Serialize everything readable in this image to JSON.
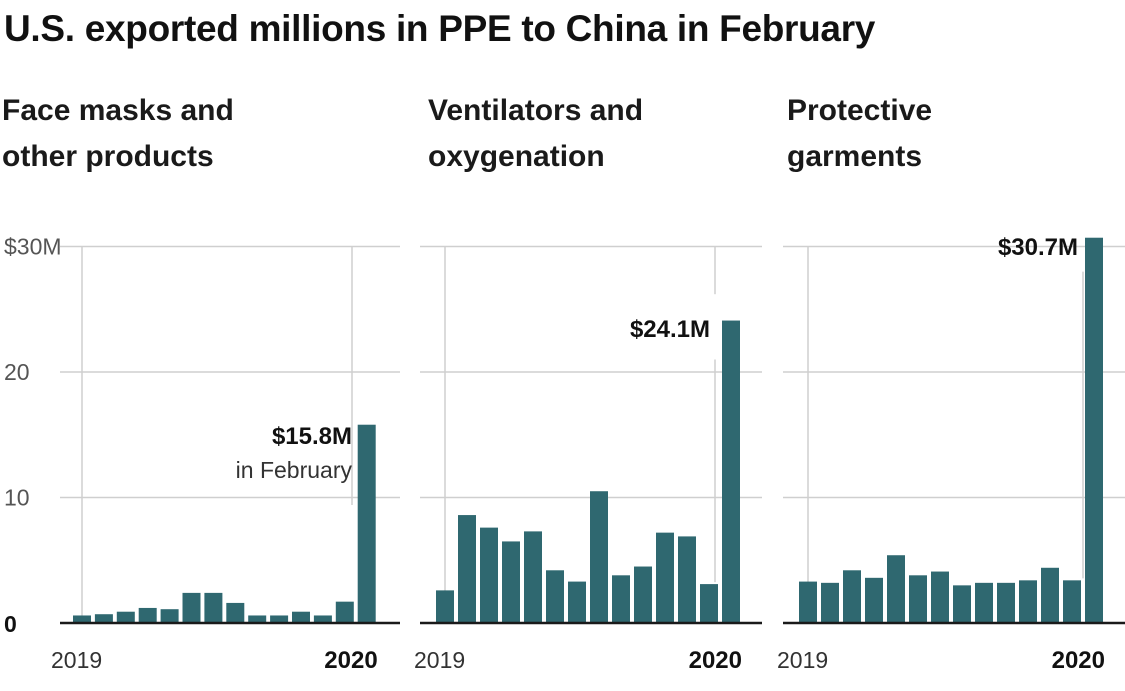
{
  "title": "U.S. exported millions in PPE to China in February",
  "colors": {
    "bar": "#2f6870",
    "grid": "#cfcfcf",
    "axis": "#1a1a1a",
    "text": "#1a1a1a"
  },
  "y_axis": {
    "labels": [
      "$30M",
      "20",
      "10",
      "0"
    ]
  },
  "chart_data": [
    {
      "type": "bar",
      "title": "Face masks and other products",
      "title_lines": [
        "Face masks and",
        "other products"
      ],
      "unit": "millions of USD",
      "x_start_label": "2019",
      "x_end_label": "2020",
      "ylim": [
        0,
        30
      ],
      "yticks": [
        0,
        10,
        20,
        30
      ],
      "values": [
        0.6,
        0.7,
        0.9,
        1.2,
        1.1,
        2.4,
        2.4,
        1.6,
        0.6,
        0.6,
        0.9,
        0.6,
        1.7,
        15.8
      ],
      "callout": {
        "value_label": "$15.8M",
        "sub_label": "in February"
      }
    },
    {
      "type": "bar",
      "title": "Ventilators and oxygenation",
      "title_lines": [
        "Ventilators and",
        "oxygenation"
      ],
      "unit": "millions of USD",
      "x_start_label": "2019",
      "x_end_label": "2020",
      "ylim": [
        0,
        30
      ],
      "yticks": [
        0,
        10,
        20,
        30
      ],
      "values": [
        2.6,
        8.6,
        7.6,
        6.5,
        7.3,
        4.2,
        3.3,
        10.5,
        3.8,
        4.5,
        7.2,
        6.9,
        3.1,
        24.1
      ],
      "callout": {
        "value_label": "$24.1M",
        "sub_label": ""
      }
    },
    {
      "type": "bar",
      "title": "Protective garments",
      "title_lines": [
        "Protective",
        "garments"
      ],
      "unit": "millions of USD",
      "x_start_label": "2019",
      "x_end_label": "2020",
      "ylim": [
        0,
        30
      ],
      "yticks": [
        0,
        10,
        20,
        30
      ],
      "values": [
        3.3,
        3.2,
        4.2,
        3.6,
        5.4,
        3.8,
        4.1,
        3.0,
        3.2,
        3.2,
        3.4,
        4.4,
        3.4,
        30.7
      ],
      "callout": {
        "value_label": "$30.7M",
        "sub_label": ""
      }
    }
  ]
}
